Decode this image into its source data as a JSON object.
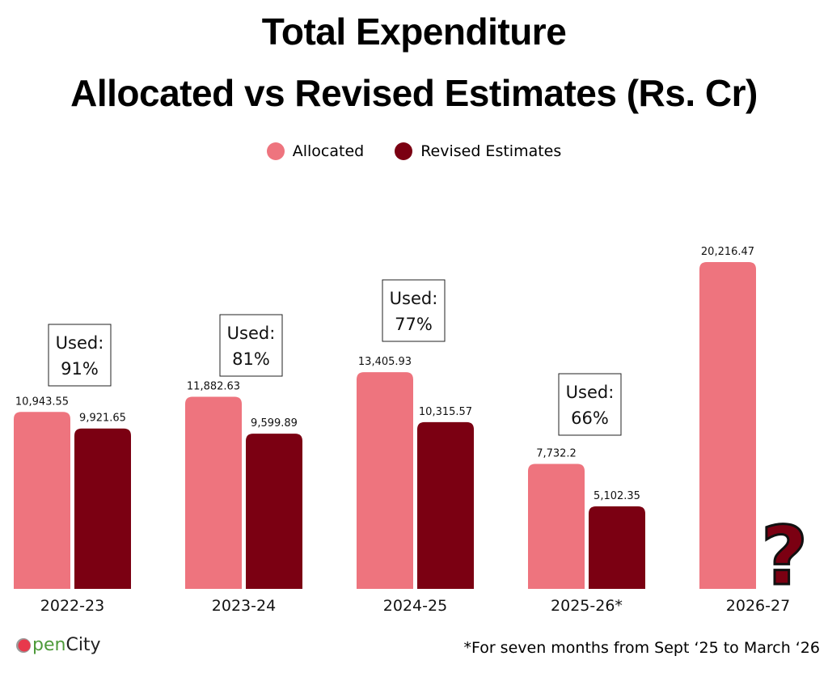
{
  "chart_data": {
    "type": "bar",
    "title": "Total Expenditure",
    "subtitle": "Allocated vs Revised Estimates (Rs. Cr)",
    "categories": [
      "2022-23",
      "2023-24",
      "2024-25",
      "2025-26*",
      "2026-27"
    ],
    "series": [
      {
        "name": "Allocated",
        "color": "#EE747E",
        "values": [
          10943.55,
          11882.63,
          13405.93,
          7732.2,
          20216.47
        ],
        "labels": [
          "10,943.55",
          "11,882.63",
          "13,405.93",
          "7,732.2",
          "20,216.47"
        ]
      },
      {
        "name": "Revised Estimates",
        "color": "#7B0012",
        "values": [
          9921.65,
          9599.89,
          10315.57,
          5102.35,
          null
        ],
        "labels": [
          "9,921.65",
          "9,599.89",
          "10,315.57",
          "5,102.35",
          ""
        ]
      }
    ],
    "annotations": [
      {
        "category": "2022-23",
        "line1": "Used:",
        "line2": "91%"
      },
      {
        "category": "2023-24",
        "line1": "Used:",
        "line2": "81%"
      },
      {
        "category": "2024-25",
        "line1": "Used:",
        "line2": "77%"
      },
      {
        "category": "2025-26*",
        "line1": "Used:",
        "line2": "66%"
      }
    ],
    "unknown_marker": {
      "category": "2026-27",
      "text": "?"
    },
    "xlabel": "",
    "ylabel": "",
    "ylim": [
      0,
      20216.47
    ],
    "grid": false,
    "legend_position": "top-center"
  },
  "footnote": "*For seven months from  Sept ‘25 to March ‘26",
  "logo": {
    "text_part1": "pen",
    "text_part2": "City"
  }
}
